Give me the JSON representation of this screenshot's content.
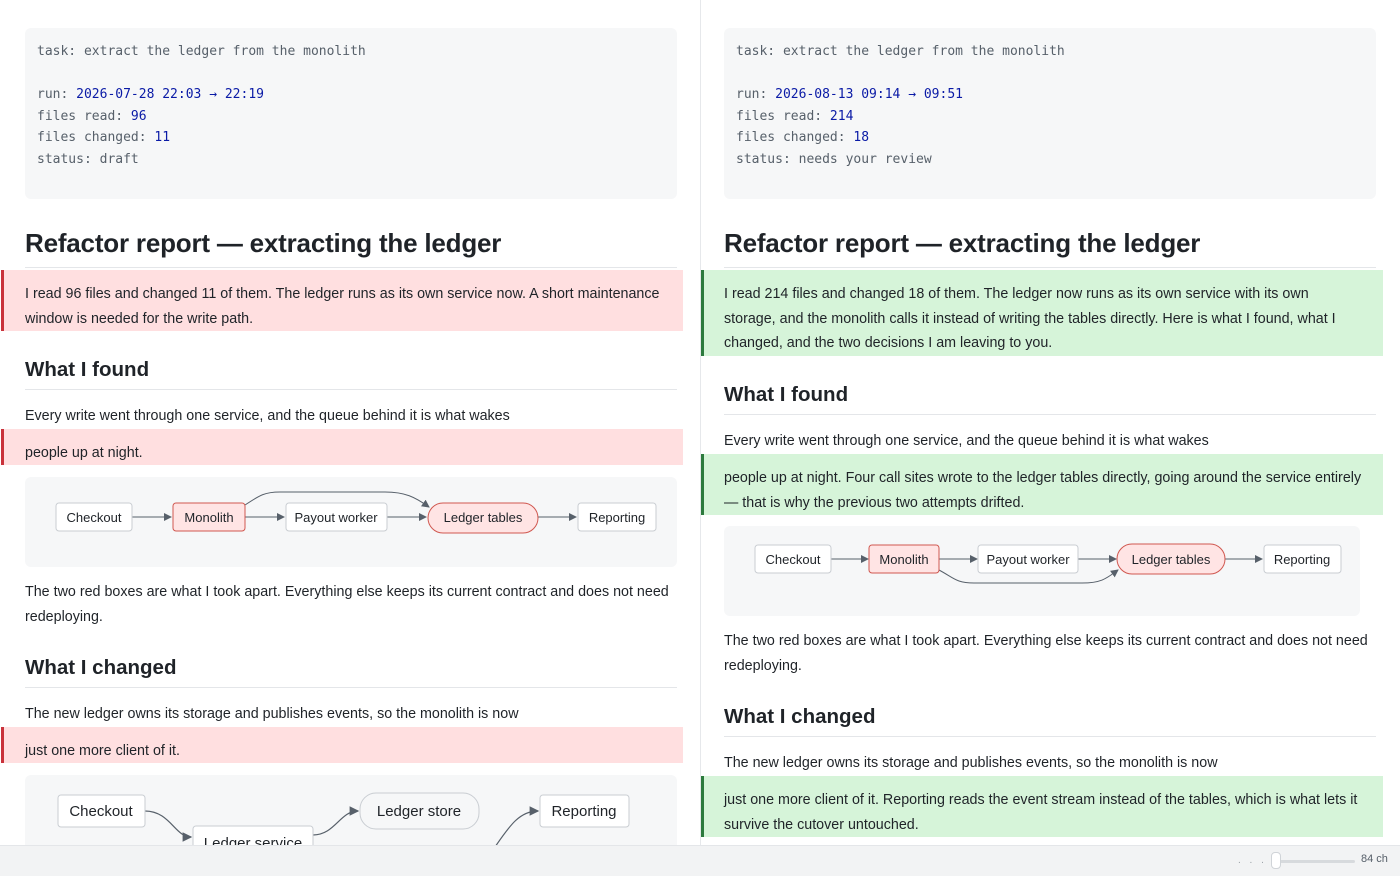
{
  "left": {
    "meta": {
      "task_label": "task:",
      "task": "extract the ledger from the monolith",
      "run_label": "run:",
      "run": "2026-07-28 22:03 → 22:19",
      "files_read_label": "files read:",
      "files_read": "96",
      "files_changed_label": "files changed:",
      "files_changed": "11",
      "status_label": "status:",
      "status": "draft"
    },
    "title": "Refactor report — extracting the ledger",
    "summary": "I read 96 files and changed 11 of them. The ledger runs as its own service now. A short maintenance window is needed for the write path.",
    "found_heading": "What I found",
    "found_p1": "Every write went through one service, and the queue behind it is what wakes",
    "found_p2": "people up at night.",
    "diagram1": {
      "nodes": [
        "Checkout",
        "Monolith",
        "Payout worker",
        "Ledger tables",
        "Reporting"
      ]
    },
    "after_diagram": "The two red boxes are what I took apart. Everything else keeps its current contract and does not need redeploying.",
    "changed_heading": "What I changed",
    "changed_p1": "The new ledger owns its storage and publishes events, so the monolith is now",
    "changed_p2": "just one more client of it.",
    "diagram2": {
      "nodes": [
        "Checkout",
        "Ledger store",
        "Reporting",
        "Ledger service"
      ]
    }
  },
  "right": {
    "meta": {
      "task_label": "task:",
      "task": "extract the ledger from the monolith",
      "run_label": "run:",
      "run": "2026-08-13 09:14 → 09:51",
      "files_read_label": "files read:",
      "files_read": "214",
      "files_changed_label": "files changed:",
      "files_changed": "18",
      "status_label": "status:",
      "status": "needs your review"
    },
    "title": "Refactor report — extracting the ledger",
    "summary": "I read 214 files and changed 18 of them. The ledger now runs as its own service with its own storage, and the monolith calls it instead of writing the tables directly. Here is what I found, what I changed, and the two decisions I am leaving to you.",
    "found_heading": "What I found",
    "found_p1": "Every write went through one service, and the queue behind it is what wakes",
    "found_p2": "people up at night. Four call sites wrote to the ledger tables directly, going around the service entirely — that is why the previous two attempts drifted.",
    "diagram1": {
      "nodes": [
        "Checkout",
        "Monolith",
        "Payout worker",
        "Ledger tables",
        "Reporting"
      ]
    },
    "after_diagram": "The two red boxes are what I took apart. Everything else keeps its current contract and does not need redeploying.",
    "changed_heading": "What I changed",
    "changed_p1": "The new ledger owns its storage and publishes events, so the monolith is now",
    "changed_p2": "just one more client of it. Reporting reads the event stream instead of the tables, which is what lets it survive the cutover untouched."
  },
  "statusbar": {
    "dots": ". . . . . . . . . .",
    "width_readout": "84 ch"
  }
}
